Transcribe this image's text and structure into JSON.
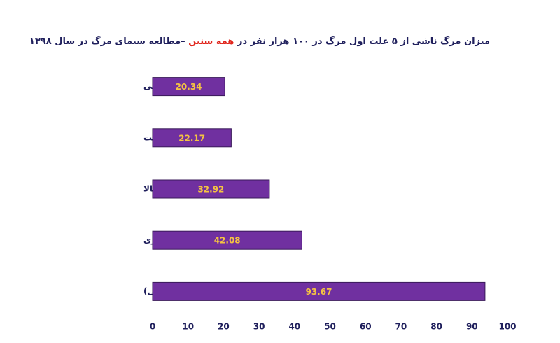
{
  "chart_data": {
    "type": "barh",
    "title_parts": [
      {
        "text": "میزان مرگ ناشی از ۵ علت اول مرگ در ۱۰۰ هزار نفر در ",
        "color": "#1f1f5c"
      },
      {
        "text": "همه سنین",
        "color": "#e0241b"
      },
      {
        "text": " –مطالعه سیمای مرگ در سال ۱۳۹۸",
        "color": "#1f1f5c"
      }
    ],
    "categories": [
      "حوادث ترافیکی",
      "دیابت",
      "بیماری فشارخون بالا",
      "سکته مغزی",
      "بیماری های ایسکمیک قلب(سکته قلبی)"
    ],
    "values": [
      20.34,
      22.17,
      32.92,
      42.08,
      93.67
    ],
    "color": "#7030a0",
    "label_color": "#f5c342",
    "xlim": [
      0,
      100
    ],
    "xticks": [
      0,
      10,
      20,
      30,
      40,
      50,
      60,
      70,
      80,
      90,
      100
    ],
    "grid": false
  }
}
